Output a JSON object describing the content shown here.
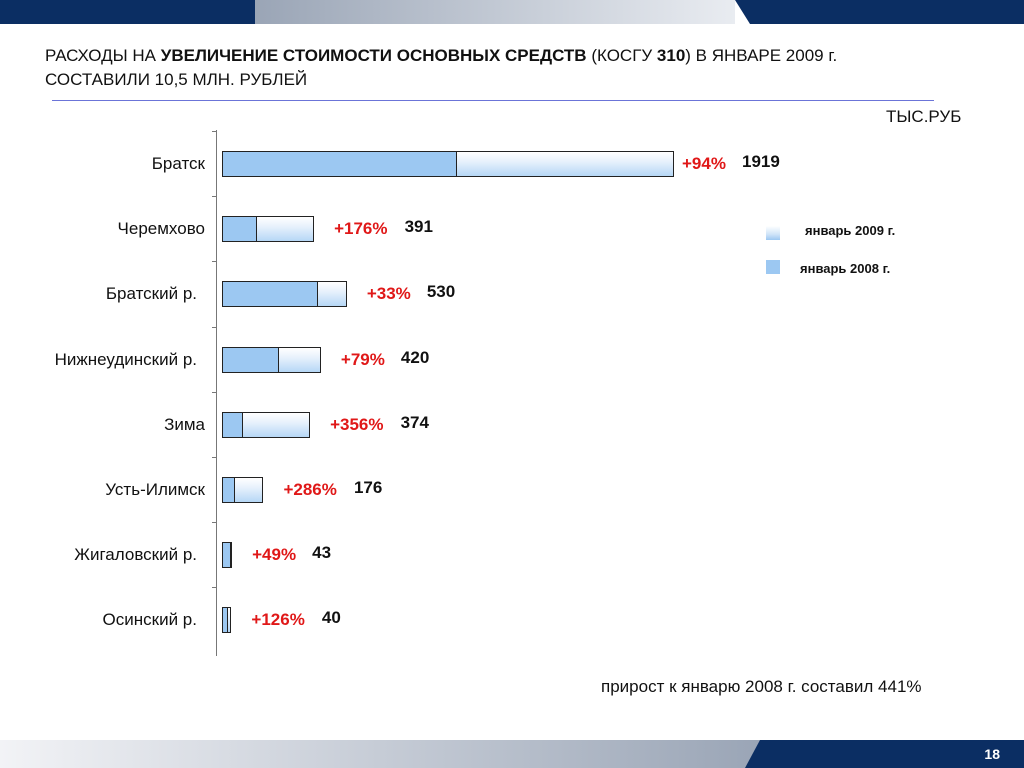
{
  "slide": {
    "title_parts": [
      {
        "text": "РАСХОДЫ НА ",
        "bold": false
      },
      {
        "text": "УВЕЛИЧЕНИЕ СТОИМОСТИ ОСНОВНЫХ СРЕДСТВ",
        "bold": true
      },
      {
        "text": " (КОСГУ ",
        "bold": false
      },
      {
        "text": "310",
        "bold": true
      },
      {
        "text": ") В ЯНВАРЕ 2009 г. СОСТАВИЛИ 10,5 МЛН. РУБЛЕЙ",
        "bold": false
      }
    ],
    "units": "ТЫС.РУБ",
    "note": "прирост к январю 2008 г. составил 441%",
    "page_number": "18"
  },
  "colors": {
    "accent_navy": "#0b2e63",
    "bar_2008": "#9cc8f2",
    "pct_red": "#e01818"
  },
  "chart_data": {
    "type": "bar",
    "orientation": "horizontal",
    "categories": [
      "Братск",
      "Черемхово",
      "Братский р.",
      "Нижнеудинский р.",
      "Зима",
      "Усть-Илимск",
      "Жигаловский р.",
      "Осинский р."
    ],
    "series": [
      {
        "name": "январь 2009 г.",
        "values": [
          1919,
          391,
          530,
          420,
          374,
          176,
          43,
          40
        ]
      },
      {
        "name": "январь 2008 г.",
        "values": [
          989,
          142,
          398,
          235,
          82,
          46,
          29,
          18
        ]
      }
    ],
    "value_labels": [
      "1919",
      "391",
      "530",
      "420",
      "374",
      "176",
      "43",
      "40"
    ],
    "growth_labels": [
      "+94%",
      "+176%",
      "+33%",
      "+79%",
      "+356%",
      "+286%",
      "+49%",
      "+126%"
    ],
    "legend": {
      "position": "right",
      "entries": [
        "январь 2009 г.",
        "январь 2008 г."
      ]
    },
    "grid": false
  }
}
